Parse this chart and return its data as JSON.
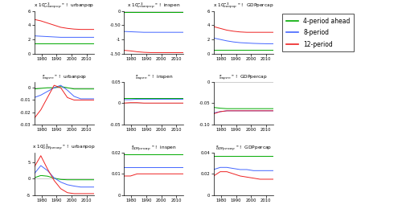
{
  "x_ticks": [
    1980,
    1990,
    2000,
    2010
  ],
  "legend_labels": [
    "4-period ahead",
    "8-period",
    "12-period"
  ],
  "row0_col0": {
    "title": "x 10$^{-3}_{urbanpop}$ \" !  urbanpop",
    "green": [
      1.5,
      1.5,
      1.5,
      1.5,
      1.5,
      1.5,
      1.5,
      1.5,
      1.5,
      1.5
    ],
    "blue": [
      2.5,
      2.45,
      2.4,
      2.35,
      2.3,
      2.3,
      2.3,
      2.3,
      2.3,
      2.3
    ],
    "red": [
      4.8,
      4.6,
      4.3,
      4.0,
      3.7,
      3.55,
      3.45,
      3.4,
      3.4,
      3.4
    ],
    "ylim": [
      0,
      6
    ],
    "yticks": [
      0,
      2,
      4,
      6
    ]
  },
  "row0_col1": {
    "title": "x 10$^{-3}_{urbanpop}$ \" !  inspen",
    "green": [
      -0.05,
      -0.05,
      -0.05,
      -0.05,
      -0.05,
      -0.05,
      -0.05,
      -0.05,
      -0.05,
      -0.05
    ],
    "blue": [
      -0.72,
      -0.73,
      -0.74,
      -0.75,
      -0.75,
      -0.75,
      -0.75,
      -0.75,
      -0.75,
      -0.75
    ],
    "red": [
      -1.38,
      -1.4,
      -1.43,
      -1.45,
      -1.46,
      -1.46,
      -1.46,
      -1.46,
      -1.46,
      -1.46
    ],
    "ylim": [
      -1.5,
      0
    ],
    "yticks": [
      -1.5,
      -1.0,
      -0.5,
      0
    ]
  },
  "row0_col2": {
    "title": "x 10$^{-3}_{banpop}$ \" !  GDPpercap",
    "green": [
      0.5,
      0.5,
      0.5,
      0.5,
      0.5,
      0.5,
      0.5,
      0.5,
      0.5,
      0.5
    ],
    "blue": [
      2.2,
      2.0,
      1.8,
      1.65,
      1.55,
      1.5,
      1.45,
      1.42,
      1.4,
      1.4
    ],
    "red": [
      3.8,
      3.55,
      3.3,
      3.15,
      3.05,
      3.0,
      3.0,
      3.0,
      3.0,
      3.0
    ],
    "ylim": [
      0,
      6
    ],
    "yticks": [
      0,
      2,
      4,
      6
    ]
  },
  "row1_col0": {
    "title": "$^{a}_{inspen}$ \" !  urbanpop",
    "green": [
      -0.001,
      -0.0005,
      0.0,
      0.0,
      0.001,
      0.0,
      -0.001,
      -0.001,
      -0.001,
      -0.001
    ],
    "blue": [
      -0.008,
      -0.006,
      -0.003,
      0.0,
      0.002,
      -0.002,
      -0.007,
      -0.009,
      -0.009,
      -0.009
    ],
    "red": [
      -0.025,
      -0.018,
      -0.008,
      0.002,
      0.0,
      -0.008,
      -0.01,
      -0.01,
      -0.01,
      -0.01
    ],
    "ylim": [
      -0.03,
      0.005
    ],
    "yticks": [
      -0.03,
      -0.02,
      -0.01,
      0
    ]
  },
  "row1_col1": {
    "title": "$^{a}_{inspen}$ \" !  inspen",
    "green": [
      0.012,
      0.012,
      0.012,
      0.012,
      0.012,
      0.012,
      0.012,
      0.012,
      0.012,
      0.012
    ],
    "blue": [
      0.008,
      0.008,
      0.009,
      0.009,
      0.009,
      0.009,
      0.009,
      0.009,
      0.009,
      0.009
    ],
    "red": [
      0.0,
      0.001,
      0.001,
      0.0,
      0.0,
      0.0,
      0.0,
      0.0,
      0.0,
      0.0
    ],
    "ylim": [
      -0.05,
      0.05
    ],
    "yticks": [
      -0.05,
      0,
      0.05
    ]
  },
  "row1_col2": {
    "title": "$^{a}_{inspen}$ \" !  GDPpercap",
    "green": [
      -0.06,
      -0.062,
      -0.063,
      -0.063,
      -0.063,
      -0.063,
      -0.063,
      -0.063,
      -0.063,
      -0.063
    ],
    "blue": [
      -0.073,
      -0.07,
      -0.068,
      -0.068,
      -0.068,
      -0.068,
      -0.068,
      -0.068,
      -0.068,
      -0.068
    ],
    "red": [
      -0.075,
      -0.07,
      -0.068,
      -0.068,
      -0.068,
      -0.068,
      -0.068,
      -0.068,
      -0.068,
      -0.068
    ],
    "ylim": [
      -0.1,
      0
    ],
    "yticks": [
      -0.1,
      -0.05,
      0
    ]
  },
  "row2_col0": {
    "title": "x 10$^{-3}_{GDPpercap}$ \" !  urbanpop",
    "green": [
      0.3,
      1.0,
      0.8,
      0.2,
      -0.2,
      -0.3,
      -0.3,
      -0.3,
      -0.3,
      -0.3
    ],
    "blue": [
      1.5,
      4.0,
      2.5,
      0.3,
      -1.0,
      -1.8,
      -2.2,
      -2.5,
      -2.5,
      -2.5
    ],
    "red": [
      3.5,
      7.0,
      3.0,
      -0.5,
      -3.0,
      -4.2,
      -4.5,
      -4.5,
      -4.5,
      -4.5
    ],
    "ylim": [
      -5,
      8
    ],
    "yticks": [
      -5,
      0,
      5
    ]
  },
  "row2_col1": {
    "title": "$^{a}_{GDPpercap}$ \" !  inspen",
    "green": [
      0.019,
      0.019,
      0.019,
      0.019,
      0.019,
      0.019,
      0.019,
      0.019,
      0.019,
      0.019
    ],
    "blue": [
      0.013,
      0.013,
      0.013,
      0.013,
      0.013,
      0.013,
      0.013,
      0.013,
      0.013,
      0.013
    ],
    "red": [
      0.009,
      0.009,
      0.01,
      0.01,
      0.01,
      0.01,
      0.01,
      0.01,
      0.01,
      0.01
    ],
    "ylim": [
      0,
      0.02
    ],
    "yticks": [
      0,
      0.01,
      0.02
    ]
  },
  "row2_col2": {
    "title": "$^{a}_{GDPpercap}$ \" !  GDPpercap",
    "green": [
      0.037,
      0.037,
      0.037,
      0.037,
      0.037,
      0.037,
      0.037,
      0.037,
      0.037,
      0.037
    ],
    "blue": [
      0.024,
      0.026,
      0.026,
      0.025,
      0.024,
      0.024,
      0.023,
      0.023,
      0.023,
      0.023
    ],
    "red": [
      0.018,
      0.022,
      0.022,
      0.02,
      0.018,
      0.017,
      0.016,
      0.015,
      0.015,
      0.015
    ],
    "ylim": [
      0,
      0.04
    ],
    "yticks": [
      0,
      0.02,
      0.04
    ]
  }
}
